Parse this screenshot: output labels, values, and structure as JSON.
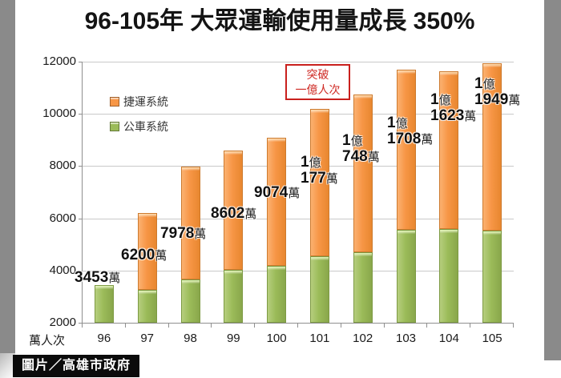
{
  "title": "96-105年 大眾運輸使用量成長 350%",
  "credit": "圖片／高雄市政府",
  "chart_data": {
    "type": "bar",
    "stacked": true,
    "title": "96-105年 大眾運輸使用量成長 350%",
    "categories": [
      "96",
      "97",
      "98",
      "99",
      "100",
      "101",
      "102",
      "103",
      "104",
      "105"
    ],
    "series": [
      {
        "name": "捷運系統",
        "color": "#F79646",
        "values": [
          0,
          2950,
          4328,
          4582,
          4904,
          5617,
          6048,
          6158,
          6023,
          6429
        ]
      },
      {
        "name": "公車系統",
        "color": "#9BBB59",
        "values": [
          3453,
          3250,
          3650,
          4020,
          4170,
          4560,
          4700,
          5550,
          5600,
          5520
        ]
      }
    ],
    "totals": [
      3453,
      6200,
      7978,
      8602,
      9074,
      10177,
      10748,
      11708,
      11623,
      11949
    ],
    "total_labels": [
      [
        "3453萬"
      ],
      [
        "6200萬"
      ],
      [
        "7978萬"
      ],
      [
        "8602萬"
      ],
      [
        "9074萬"
      ],
      [
        "1億",
        "177萬"
      ],
      [
        "1億",
        "748萬"
      ],
      [
        "1億",
        "1708萬"
      ],
      [
        "1億",
        "1623萬"
      ],
      [
        "1億",
        "1949萬"
      ]
    ],
    "ylabel": "萬人次",
    "yticks": [
      2000,
      4000,
      6000,
      8000,
      10000,
      12000
    ],
    "ylim": [
      2000,
      12000
    ],
    "grid": true,
    "legend_position": "upper-left",
    "annotation": {
      "lines": [
        "突破",
        "一億人次"
      ],
      "color": "#CF2A24",
      "border_color": "#C9201D"
    },
    "colors": {
      "grid": "#C9C9C9",
      "axis": "#8F8F8F",
      "letterbox": "#8A8A8A"
    }
  }
}
